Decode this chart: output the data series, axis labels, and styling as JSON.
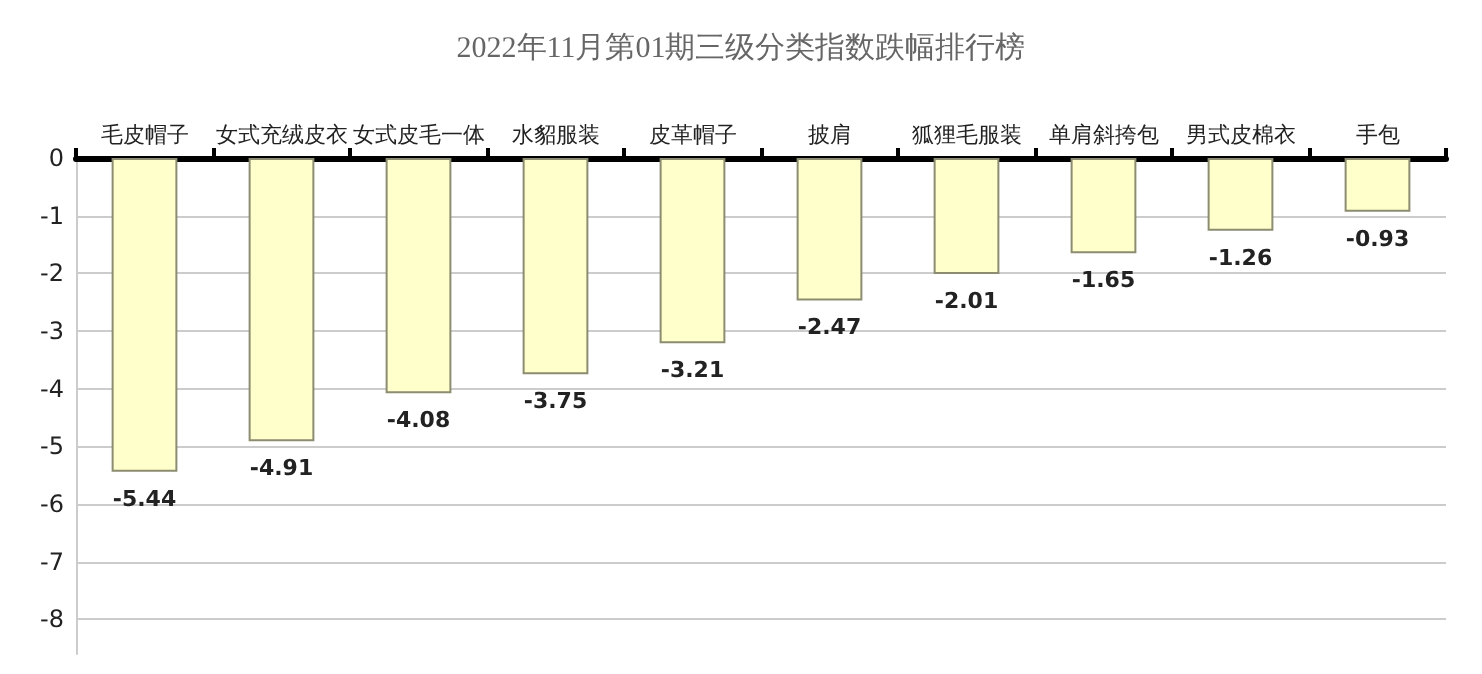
{
  "chart_data": {
    "type": "bar",
    "title": "2022年11月第01期三级分类指数跌幅排行榜",
    "categories": [
      "毛皮帽子",
      "女式充绒皮衣",
      "女式皮毛一体",
      "水貂服装",
      "皮革帽子",
      "披肩",
      "狐狸毛服装",
      "单肩斜挎包",
      "男式皮棉衣",
      "手包"
    ],
    "values": [
      -5.44,
      -4.91,
      -4.08,
      -3.75,
      -3.21,
      -2.47,
      -2.01,
      -1.65,
      -1.26,
      -0.93
    ],
    "color": "#ffffcc",
    "ylim": [
      -8.6,
      0
    ],
    "yticks": [
      0,
      -1,
      -2,
      -3,
      -4,
      -5,
      -6,
      -7,
      -8
    ],
    "grid": "y",
    "data_labels": true
  }
}
